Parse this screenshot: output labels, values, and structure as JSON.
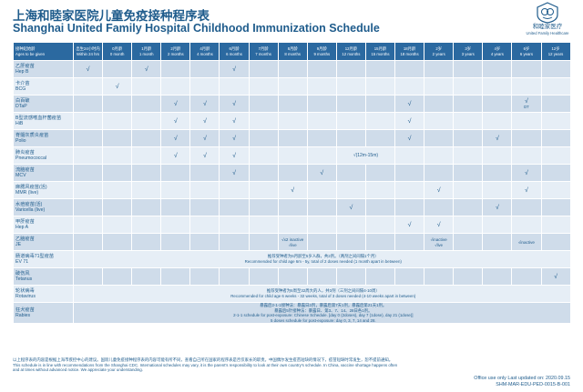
{
  "header": {
    "title_cn": "上海和睦家医院儿童免疫接种程序表",
    "title_en": "Shanghai United Family Hospital Childhood Immunization Schedule"
  },
  "logo": {
    "name_cn": "和睦家医疗",
    "name_en": "United Family Healthcare",
    "icon": "ufh-shield-logo-icon",
    "accent": "#1f5c8c"
  },
  "colors": {
    "header_bg": "#2b69a0",
    "row_dark": "#cfdcea",
    "row_light": "#e6eef6",
    "text": "#1f5c8c"
  },
  "table": {
    "age_header_cn": "接种起始龄",
    "age_header_en": "Ages to be given",
    "ages": [
      {
        "cn": "出生24小时内",
        "en": "Within 24 hrs"
      },
      {
        "cn": "0月龄",
        "en": "0 month"
      },
      {
        "cn": "1月龄",
        "en": "1 month"
      },
      {
        "cn": "2月龄",
        "en": "2 months"
      },
      {
        "cn": "4月龄",
        "en": "4 months"
      },
      {
        "cn": "6月龄",
        "en": "6 months"
      },
      {
        "cn": "7月龄",
        "en": "7 months"
      },
      {
        "cn": "8月龄",
        "en": "8 months"
      },
      {
        "cn": "9月龄",
        "en": "9 months"
      },
      {
        "cn": "12月龄",
        "en": "12 months"
      },
      {
        "cn": "15月龄",
        "en": "15 months"
      },
      {
        "cn": "18月龄",
        "en": "18 months"
      },
      {
        "cn": "2岁",
        "en": "2 years"
      },
      {
        "cn": "3岁",
        "en": "3 years"
      },
      {
        "cn": "4岁",
        "en": "4 years"
      },
      {
        "cn": "6岁",
        "en": "6 years"
      },
      {
        "cn": "12岁",
        "en": "12 years"
      }
    ],
    "check": "√",
    "rows": [
      {
        "cn": "乙肝疫苗",
        "en": "Hep B",
        "cells": {
          "0": "√",
          "2": "√",
          "5": "√"
        }
      },
      {
        "cn": "卡介苗",
        "en": "BCG",
        "cells": {
          "1": "√"
        }
      },
      {
        "cn": "白百破",
        "en": "DTaP",
        "cells": {
          "3": "√",
          "4": "√",
          "5": "√",
          "11": "√",
          "15": "√",
          "15sub": "DT"
        }
      },
      {
        "cn": "B型流感嗜血杆菌疫苗",
        "en": "HiB",
        "cells": {
          "3": "√",
          "4": "√",
          "5": "√",
          "11": "√"
        }
      },
      {
        "cn": "脊髓灰质炎疫苗",
        "en": "Polio",
        "cells": {
          "3": "√",
          "4": "√",
          "5": "√",
          "11": "√",
          "14": "√"
        }
      },
      {
        "cn": "肺炎疫苗",
        "en": "Pneumococcal",
        "cells": {
          "3": "√",
          "4": "√",
          "5": "√"
        },
        "span_text": "√(12m-15m)"
      },
      {
        "cn": "流脑疫苗",
        "en": "MCV",
        "cells": {
          "5": "√",
          "8": "√",
          "15": "√"
        }
      },
      {
        "cn": "麻腮风疫苗(活)",
        "en": "MMR (live)",
        "cells": {
          "7": "√",
          "12": "√",
          "15": "√"
        }
      },
      {
        "cn": "水痘疫苗(活)",
        "en": "Varicella (live)",
        "cells": {
          "9": "√",
          "14": "√"
        }
      },
      {
        "cn": "甲肝疫苗",
        "en": "Hep A",
        "cells": {
          "11": "√",
          "12": "√"
        }
      },
      {
        "cn": "乙脑疫苗",
        "en": "JE",
        "cells": {
          "7": "√x2 inactive",
          "7sub": "√live",
          "12": "√inactive",
          "12sub": "√live",
          "15": "√inactive"
        }
      },
      {
        "cn": "肠道病毒71型疫苗",
        "en": "EV 71",
        "note_cn": "推荐受种者为6月龄至5岁人群，共2剂。（两剂之间间隔1个月）",
        "note_en": "Recommended for child age 6m - 5y, total of 2 doses needed (1 month apart in between)"
      },
      {
        "cn": "破伤风",
        "en": "Tetanus",
        "cells": {
          "16": "√"
        }
      },
      {
        "cn": "轮状病毒",
        "en": "Rotavirus",
        "note_cn": "推荐受种者为6周至32周大的人，共3剂（三剂之间间隔4-10周）",
        "note_en": "Recommended for child age 6 weeks - 32 weeks, total of 3 doses needed (4-10 weeks apart in between)"
      },
      {
        "cn": "狂犬疫苗",
        "en": "Rabies",
        "note_cn": "暴露后2-1-1接种法：暴露日2剂，暴露后第7天1剂，暴露后第21天1剂。\n暴露后5针接种法：暴露日、第3、7、14、28日各1剂。",
        "note_en": "2-1-1 schedule for post-exposure: Chinese Schedule. [day 0 (2doses), day 7 (1dose), day 21 (1dose)]\n5 doses schedule for post-exposure: day 0, 3, 7, 14 and 28."
      }
    ]
  },
  "footer": {
    "note_cn": "以上程序表的内容是根据上海市疾控中心的建议。国际儿童免疫接种程序表的内容可能有所不同，查看自己所在国家的程序表是否仅家长的职责。中国偶尔发生疫苗短缺的情况下，疫苗短缺时常发生，恕不提前通知。",
    "note_en": "This schedule is in line with recommendations from the Shanghai CDC. International schedules may vary, it is the parent's responsibility to look at their own country's schedule. In China, vaccine shortage happens often and at times without advanced notice. We appreciate your understanding.",
    "office_use": "Office use only Last updated on: 2020.09.15",
    "doc_code": "SHM-MAR-EDU-PED-0015-B-001"
  }
}
